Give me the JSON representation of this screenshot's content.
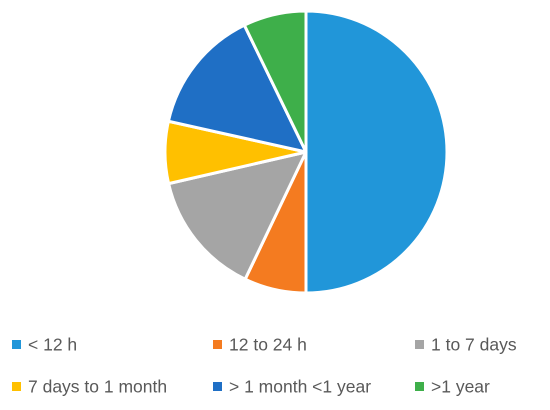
{
  "chart_data": {
    "type": "pie",
    "title": "",
    "slices": [
      {
        "label": "< 12 h",
        "value": 50,
        "color": "#2196D9"
      },
      {
        "label": "12 to 24 h",
        "value": 7.1,
        "color": "#F47B20"
      },
      {
        "label": "1 to 7 days",
        "value": 14.3,
        "color": "#A5A5A5"
      },
      {
        "label": "7 days to 1 month",
        "value": 7.1,
        "color": "#FFC000"
      },
      {
        "label": "> 1 month <1 year",
        "value": 14.3,
        "color": "#1F6FC5"
      },
      {
        "label": ">1 year",
        "value": 7.2,
        "color": "#3EAF4A"
      }
    ],
    "legend": "bottom",
    "start_angle_deg": 0,
    "direction": "clockwise"
  }
}
